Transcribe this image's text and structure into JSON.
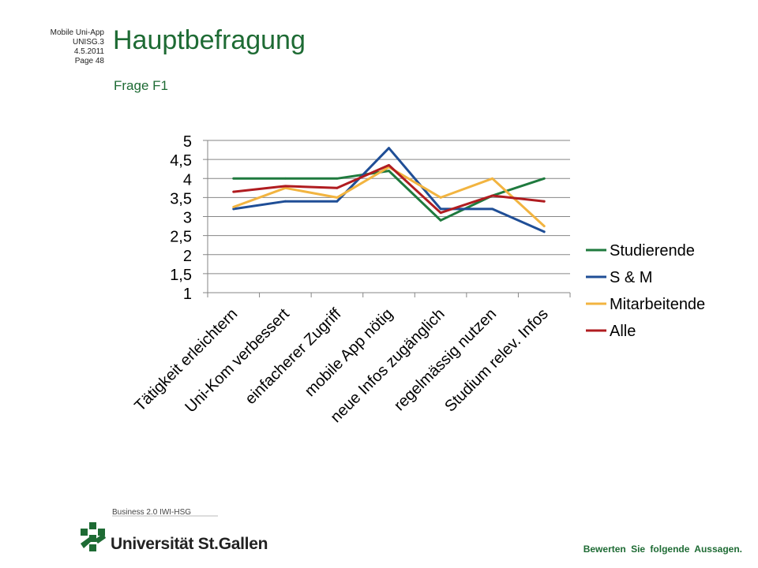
{
  "meta": {
    "line1": "Mobile Uni-App",
    "line2": "UNISG.3",
    "line3": "4.5.2011",
    "line4": "Page 48"
  },
  "title": "Hauptbefragung",
  "subtitle": "Frage F1",
  "footnote": "Bewerten Sie folgende Aussagen.",
  "logo": {
    "top_text": "Business 2.0 IWI-HSG",
    "main_text": "Universität St.Gallen",
    "icon": "hsg-logo-icon"
  },
  "colors": {
    "accent": "#1e6b34",
    "grid": "#868686"
  },
  "chart_data": {
    "type": "line",
    "categories": [
      "Tätigkeit erleichtern",
      "Uni-Kom verbessert",
      "einfacherer Zugriff",
      "mobile App nötig",
      "neue Infos zugänglich",
      "regelmässig nutzen",
      "Studium relev. Infos"
    ],
    "ylim": [
      1,
      5
    ],
    "yticks": [
      1,
      1.5,
      2,
      2.5,
      3,
      3.5,
      4,
      4.5,
      5
    ],
    "ytick_labels": [
      "1",
      "1,5",
      "2",
      "2,5",
      "3",
      "3,5",
      "4",
      "4,5",
      "5"
    ],
    "grid": true,
    "legend_position": "right",
    "series": [
      {
        "name": "Studierende",
        "color": "#1f7a3e",
        "values": [
          4.0,
          4.0,
          4.0,
          4.2,
          2.9,
          3.55,
          4.0
        ]
      },
      {
        "name": "S & M",
        "color": "#1f4e96",
        "values": [
          3.2,
          3.4,
          3.4,
          4.8,
          3.2,
          3.2,
          2.6
        ]
      },
      {
        "name": "Mitarbeitende",
        "color": "#f2b440",
        "values": [
          3.25,
          3.75,
          3.5,
          4.3,
          3.5,
          4.0,
          2.75
        ]
      },
      {
        "name": "Alle",
        "color": "#b01c20",
        "values": [
          3.65,
          3.8,
          3.75,
          4.35,
          3.1,
          3.55,
          3.4
        ]
      }
    ]
  }
}
